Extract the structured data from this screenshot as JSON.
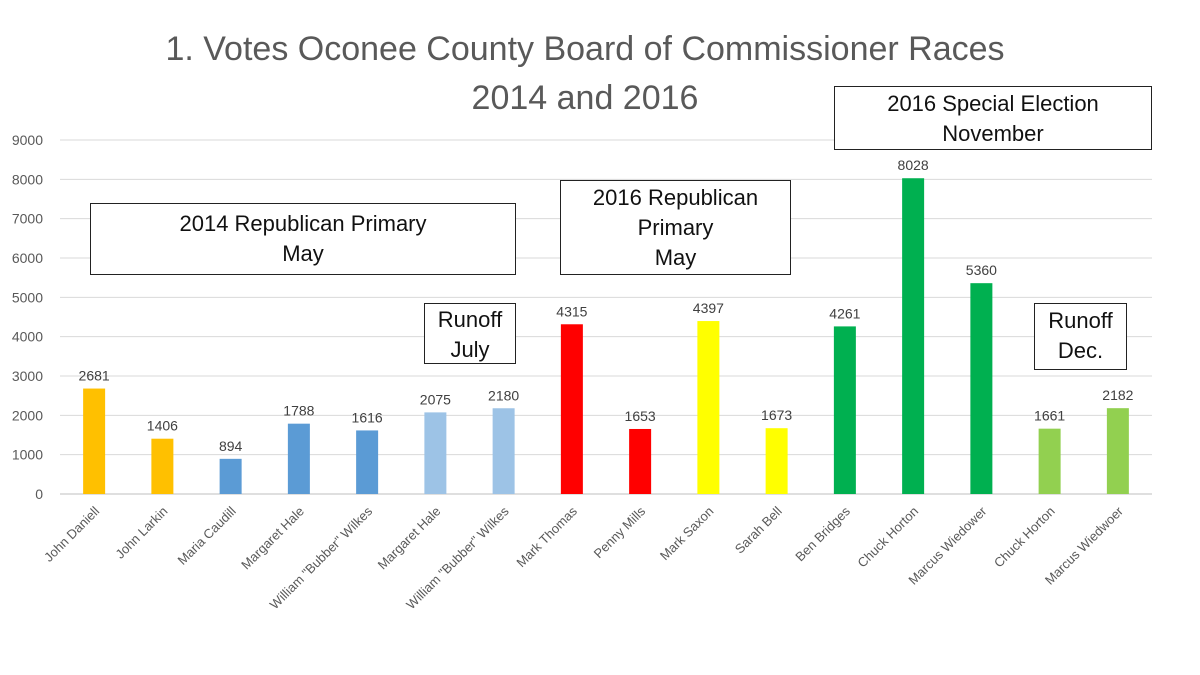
{
  "title": {
    "line1": "1. Votes Oconee County Board of Commissioner Races",
    "line2": "2014 and 2016"
  },
  "annotations": [
    {
      "lines": [
        "2014 Republican Primary",
        "May"
      ]
    },
    {
      "lines": [
        "Runoff",
        "July"
      ]
    },
    {
      "lines": [
        "2016 Republican",
        "Primary",
        "May"
      ]
    },
    {
      "lines": [
        "2016 Special Election",
        "November"
      ]
    },
    {
      "lines": [
        "Runoff",
        "Dec."
      ]
    }
  ],
  "chart_data": {
    "type": "bar",
    "ylim": [
      0,
      9000
    ],
    "yticks": [
      0,
      1000,
      2000,
      3000,
      4000,
      5000,
      6000,
      7000,
      8000,
      9000
    ],
    "grid": true,
    "categories": [
      "John Daniell",
      "John Larkin",
      "Maria Caudill",
      "Margaret Hale",
      "William \"Bubber\" Wilkes",
      "Margaret Hale",
      "William \"Bubber\" Wilkes",
      "Mark Thomas",
      "Penny Mills",
      "Mark Saxon",
      "Sarah Bell",
      "Ben Bridges",
      "Chuck Horton",
      "Marcus Wiedower",
      "Chuck Horton",
      "Marcus Wiedwoer"
    ],
    "values": [
      2681,
      1406,
      894,
      1788,
      1616,
      2075,
      2180,
      4315,
      1653,
      4397,
      1673,
      4261,
      8028,
      5360,
      1661,
      2182
    ],
    "colors": [
      "#FFC000",
      "#FFC000",
      "#5B9BD5",
      "#5B9BD5",
      "#5B9BD5",
      "#9DC3E6",
      "#9DC3E6",
      "#FF0000",
      "#FF0000",
      "#FFFF00",
      "#FFFF00",
      "#00B050",
      "#00B050",
      "#00B050",
      "#92D050",
      "#92D050"
    ],
    "data_labels": true
  }
}
